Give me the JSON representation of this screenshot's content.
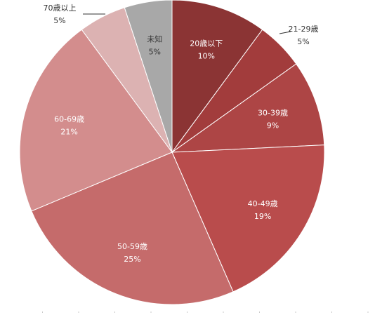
{
  "chart_data": {
    "type": "pie",
    "title": "",
    "categories": [
      "20歳以下",
      "21-29歳",
      "30-39歳",
      "40-49歳",
      "50-59歳",
      "60-69歳",
      "70歳以上",
      "未知"
    ],
    "values": [
      10,
      5,
      9,
      19,
      25,
      21,
      5,
      5
    ],
    "value_labels": [
      "10%",
      "5%",
      "9%",
      "19%",
      "25%",
      "21%",
      "5%",
      "5%"
    ],
    "colors": [
      "#8b3434",
      "#a23c3c",
      "#ad4545",
      "#b94c4c",
      "#c56b6b",
      "#d38d8d",
      "#dcb2b2",
      "#a8a8a8"
    ],
    "label_colors": [
      "#ffffff",
      "#333333",
      "#ffffff",
      "#ffffff",
      "#ffffff",
      "#ffffff",
      "#333333",
      "#333333"
    ],
    "start_angle_deg": 0,
    "direction": "clockwise",
    "legend": "none"
  }
}
